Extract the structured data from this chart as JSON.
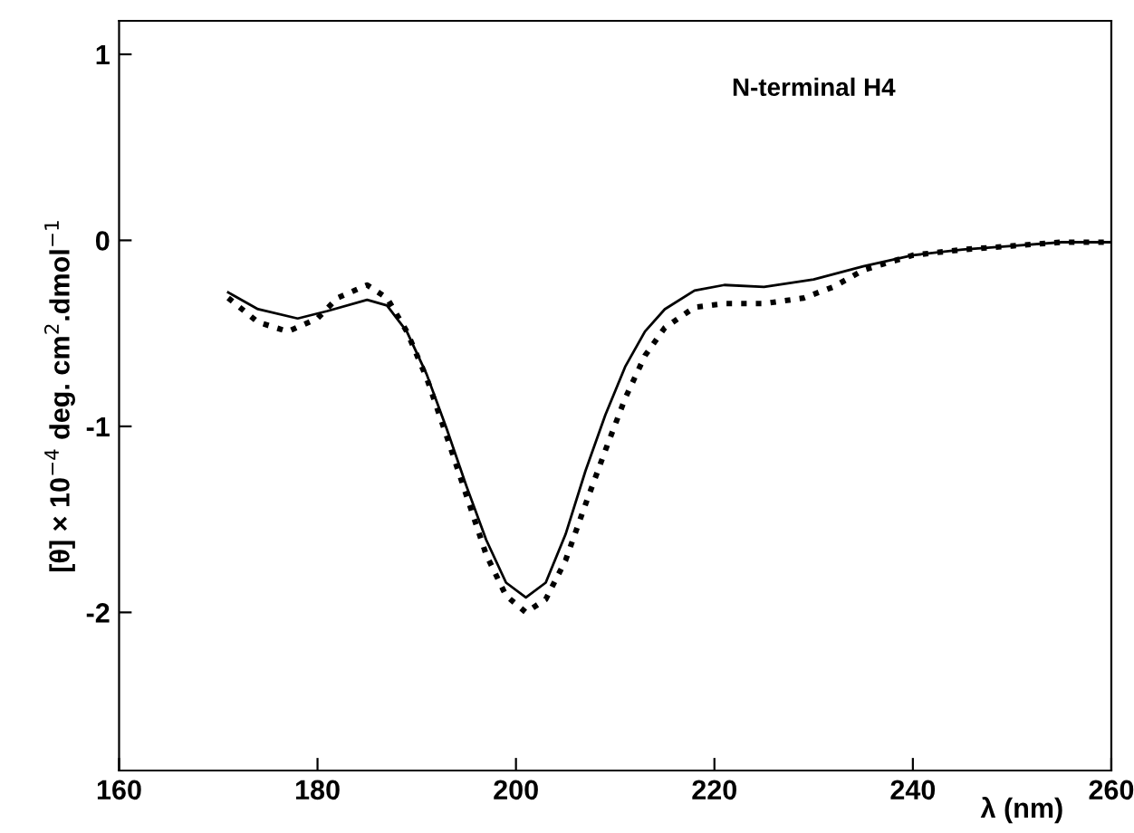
{
  "chart_data": {
    "type": "line",
    "xlabel": "λ (nm)",
    "ylabel": "[θ] × 10$^{−4}$ deg. cm$^{2}$.dmol$^{−1}$",
    "annotations": [
      "N-terminal H4"
    ],
    "xlim": [
      160,
      260
    ],
    "ylim": [
      -2.85,
      1.18
    ],
    "xticks": [
      160,
      180,
      200,
      220,
      240,
      260
    ],
    "yticks": [
      1,
      0,
      -1,
      -2
    ],
    "grid": false,
    "legend": false,
    "series": [
      {
        "color": "#000000",
        "line_style": "solid",
        "x": [
          171,
          174,
          178,
          181,
          185,
          187,
          189,
          191,
          193,
          195,
          197,
          199,
          201,
          203,
          205,
          207,
          209,
          211,
          213,
          215,
          218,
          221,
          225,
          230,
          235,
          240,
          245,
          250,
          255,
          260
        ],
        "values": [
          -0.28,
          -0.37,
          -0.42,
          -0.38,
          -0.32,
          -0.35,
          -0.49,
          -0.72,
          -1.01,
          -1.32,
          -1.61,
          -1.84,
          -1.92,
          -1.84,
          -1.58,
          -1.24,
          -0.94,
          -0.68,
          -0.49,
          -0.37,
          -0.27,
          -0.24,
          -0.25,
          -0.21,
          -0.14,
          -0.08,
          -0.05,
          -0.03,
          -0.01,
          -0.01
        ]
      },
      {
        "color": "#000000",
        "line_style": "dotted",
        "x": [
          171,
          174,
          177,
          180,
          182,
          185,
          187,
          189,
          191,
          193,
          195,
          197,
          199,
          201,
          203,
          205,
          207,
          209,
          211,
          213,
          215,
          218,
          221,
          225,
          229,
          232,
          235,
          240,
          245,
          250,
          255,
          260
        ],
        "values": [
          -0.31,
          -0.44,
          -0.49,
          -0.42,
          -0.31,
          -0.24,
          -0.31,
          -0.49,
          -0.74,
          -1.05,
          -1.37,
          -1.69,
          -1.91,
          -2.0,
          -1.93,
          -1.72,
          -1.42,
          -1.13,
          -0.85,
          -0.62,
          -0.47,
          -0.36,
          -0.34,
          -0.34,
          -0.31,
          -0.25,
          -0.16,
          -0.08,
          -0.05,
          -0.03,
          -0.01,
          -0.01
        ]
      }
    ]
  }
}
